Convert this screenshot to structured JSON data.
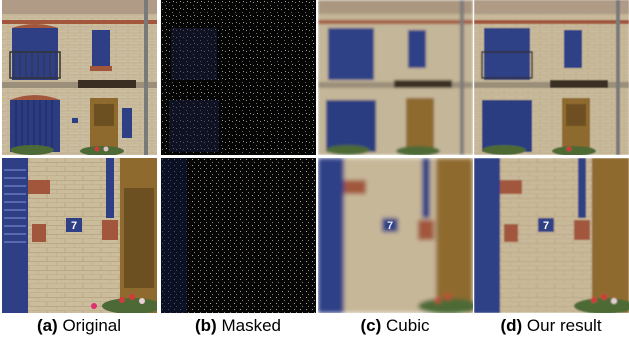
{
  "captions": [
    {
      "tag": "(a)",
      "text": "Original"
    },
    {
      "tag": "(b)",
      "text": "Masked"
    },
    {
      "tag": "(c)",
      "text": "Cubic"
    },
    {
      "tag": "(d)",
      "text": "Our result"
    }
  ],
  "house_number": "7",
  "colors": {
    "wall": "#c9b898",
    "door_blue": "#2e3f86",
    "brick": "#a2573d",
    "wood": "#8f6a2e"
  }
}
